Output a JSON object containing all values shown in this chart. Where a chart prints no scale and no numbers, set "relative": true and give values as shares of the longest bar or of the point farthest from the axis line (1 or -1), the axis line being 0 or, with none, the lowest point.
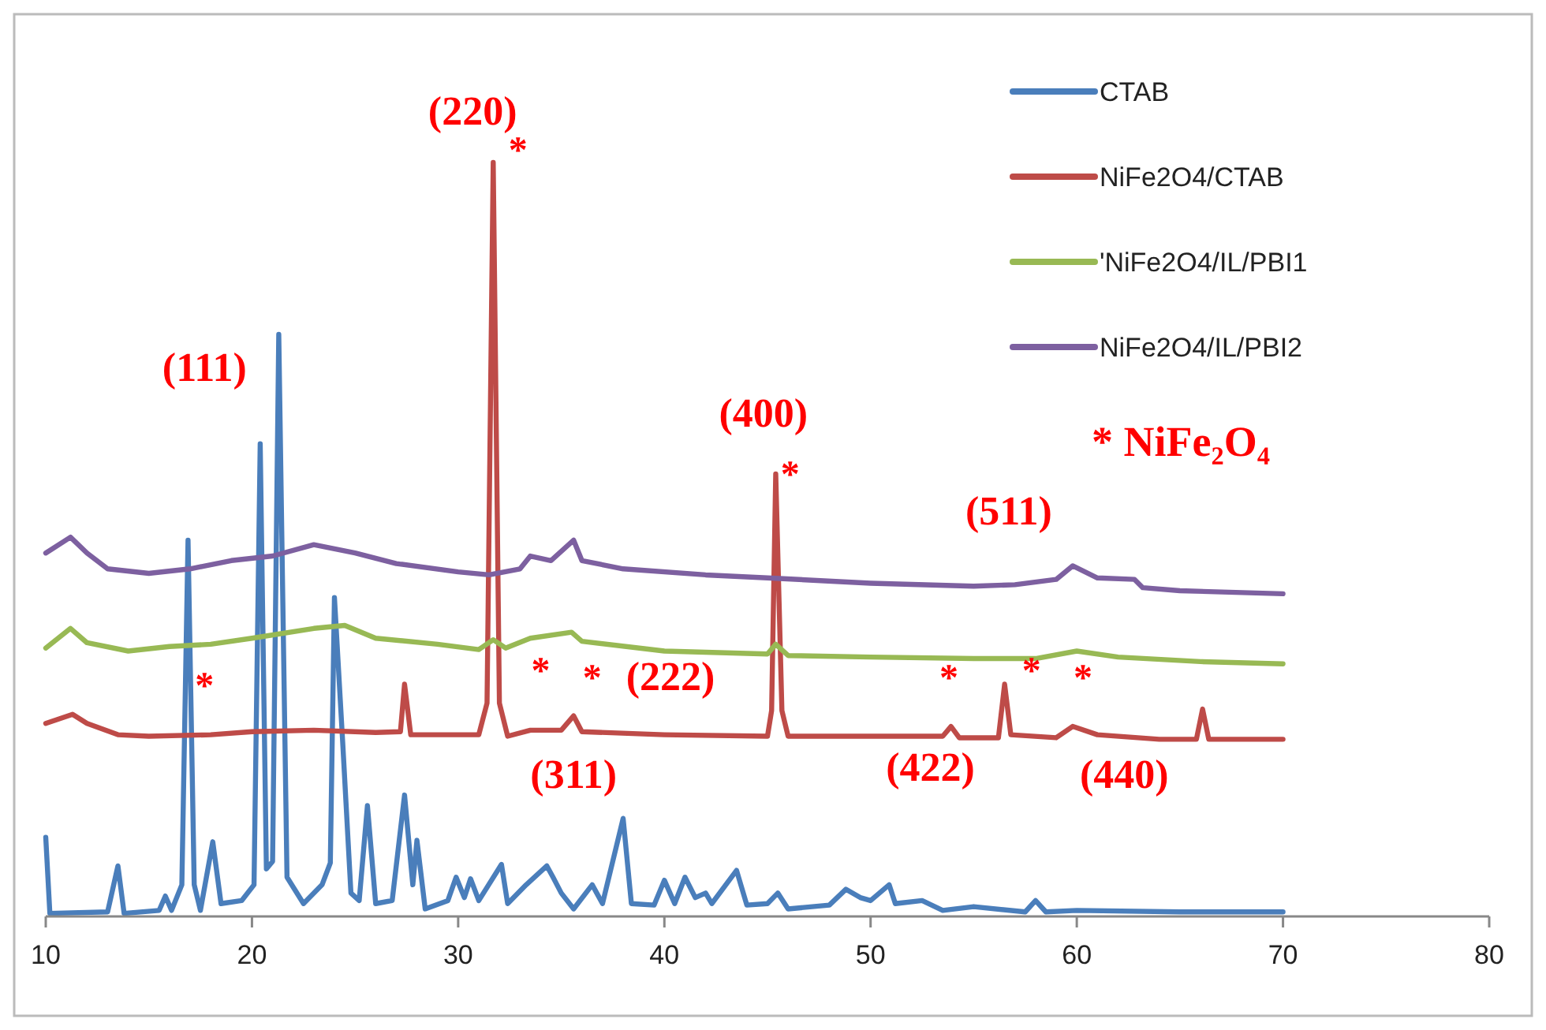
{
  "chart_data": {
    "type": "line",
    "relative": true,
    "legend": "top right",
    "xlim": [
      10,
      80
    ],
    "xticks": [
      10,
      20,
      30,
      40,
      50,
      60,
      70,
      80
    ],
    "series": [
      {
        "name": "CTAB",
        "color": "#4a7ebb",
        "x": [
          10,
          10.2,
          13,
          13.5,
          13.8,
          15.5,
          15.8,
          16.1,
          16.6,
          16.9,
          17.2,
          17.5,
          18.1,
          18.5,
          19.5,
          20.1,
          20.4,
          20.7,
          21,
          21.3,
          21.7,
          22.5,
          23.4,
          23.8,
          24,
          24.4,
          24.8,
          25.2,
          25.6,
          26,
          26.8,
          27.4,
          27.8,
          28,
          28.4,
          29.5,
          29.9,
          30.3,
          30.6,
          31,
          32.1,
          32.4,
          33.3,
          34.3,
          34.6,
          35,
          35.6,
          36.5,
          37,
          38,
          38.4,
          39.5,
          40,
          40.5,
          41,
          41.5,
          42,
          42.3,
          43.5,
          44,
          45,
          45.5,
          46,
          48,
          48.8,
          49.5,
          50,
          50.9,
          51.2,
          52.5,
          53.5,
          55,
          57.5,
          58,
          58.5,
          60,
          65,
          70
        ],
        "values": [
          0.105,
          0.004,
          0.006,
          0.067,
          0.004,
          0.008,
          0.027,
          0.008,
          0.042,
          0.499,
          0.042,
          0.008,
          0.099,
          0.017,
          0.021,
          0.042,
          0.627,
          0.063,
          0.073,
          0.772,
          0.052,
          0.017,
          0.042,
          0.071,
          0.423,
          0.231,
          0.031,
          0.021,
          0.147,
          0.017,
          0.021,
          0.161,
          0.042,
          0.101,
          0.01,
          0.021,
          0.052,
          0.025,
          0.05,
          0.021,
          0.069,
          0.017,
          0.042,
          0.067,
          0.052,
          0.031,
          0.01,
          0.042,
          0.017,
          0.13,
          0.017,
          0.015,
          0.048,
          0.017,
          0.052,
          0.025,
          0.031,
          0.017,
          0.061,
          0.015,
          0.017,
          0.031,
          0.01,
          0.015,
          0.036,
          0.025,
          0.021,
          0.042,
          0.017,
          0.021,
          0.008,
          0.013,
          0.006,
          0.021,
          0.006,
          0.008,
          0.006,
          0.006
        ]
      },
      {
        "name": "NiFe2O4/CTAB",
        "color": "#be4b48",
        "x": [
          10,
          11.3,
          12,
          13.5,
          15,
          18,
          20,
          23,
          26,
          27.2,
          27.4,
          27.7,
          31,
          31.4,
          31.7,
          32,
          32.4,
          33.5,
          35,
          35.6,
          36,
          40,
          45,
          45.2,
          45.4,
          45.7,
          46,
          50,
          53.5,
          53.9,
          54.3,
          56.2,
          56.5,
          56.8,
          59,
          59.8,
          61,
          64,
          65.8,
          66.1,
          66.4,
          70
        ],
        "values": [
          0.256,
          0.268,
          0.256,
          0.241,
          0.239,
          0.241,
          0.245,
          0.247,
          0.244,
          0.245,
          0.308,
          0.241,
          0.241,
          0.283,
          1,
          0.283,
          0.239,
          0.247,
          0.247,
          0.266,
          0.245,
          0.241,
          0.239,
          0.273,
          0.587,
          0.273,
          0.239,
          0.239,
          0.239,
          0.252,
          0.237,
          0.237,
          0.308,
          0.241,
          0.237,
          0.252,
          0.241,
          0.235,
          0.235,
          0.275,
          0.235,
          0.235
        ]
      },
      {
        "name": "'NiFe2O4/IL/PBI1",
        "color": "#98b954",
        "x": [
          10,
          11.2,
          12,
          14,
          16,
          18,
          20,
          23,
          24.5,
          26,
          29,
          31,
          31.7,
          32.3,
          33.5,
          35.5,
          36,
          40,
          45,
          45.4,
          46,
          50,
          55,
          58,
          60,
          62,
          66,
          70
        ],
        "values": [
          0.356,
          0.382,
          0.363,
          0.352,
          0.358,
          0.361,
          0.369,
          0.382,
          0.386,
          0.369,
          0.361,
          0.354,
          0.367,
          0.356,
          0.369,
          0.377,
          0.365,
          0.352,
          0.348,
          0.361,
          0.346,
          0.344,
          0.342,
          0.342,
          0.352,
          0.344,
          0.338,
          0.335
        ]
      },
      {
        "name": "NiFe2O4/IL/PBI2",
        "color": "#7d60a0",
        "x": [
          10,
          11.2,
          12,
          13,
          15,
          17,
          19,
          21,
          23,
          25,
          27,
          30,
          31.5,
          33,
          33.5,
          34.5,
          35.6,
          36,
          38,
          42,
          45,
          50,
          55,
          57,
          59,
          59.8,
          61,
          62.8,
          63.2,
          65,
          70
        ],
        "values": [
          0.482,
          0.503,
          0.482,
          0.461,
          0.455,
          0.461,
          0.472,
          0.478,
          0.493,
          0.482,
          0.468,
          0.457,
          0.453,
          0.461,
          0.478,
          0.472,
          0.499,
          0.472,
          0.461,
          0.453,
          0.449,
          0.442,
          0.438,
          0.44,
          0.447,
          0.465,
          0.449,
          0.447,
          0.436,
          0.432,
          0.428
        ]
      }
    ],
    "annotations": [
      "(220)",
      "*",
      "(111)",
      "(400)",
      "*",
      "(511)",
      "*",
      "*",
      "*",
      "(222)",
      "(311)",
      "*",
      "*",
      "*",
      "(422)",
      "(440)",
      "* NiFe₂O₄"
    ]
  }
}
